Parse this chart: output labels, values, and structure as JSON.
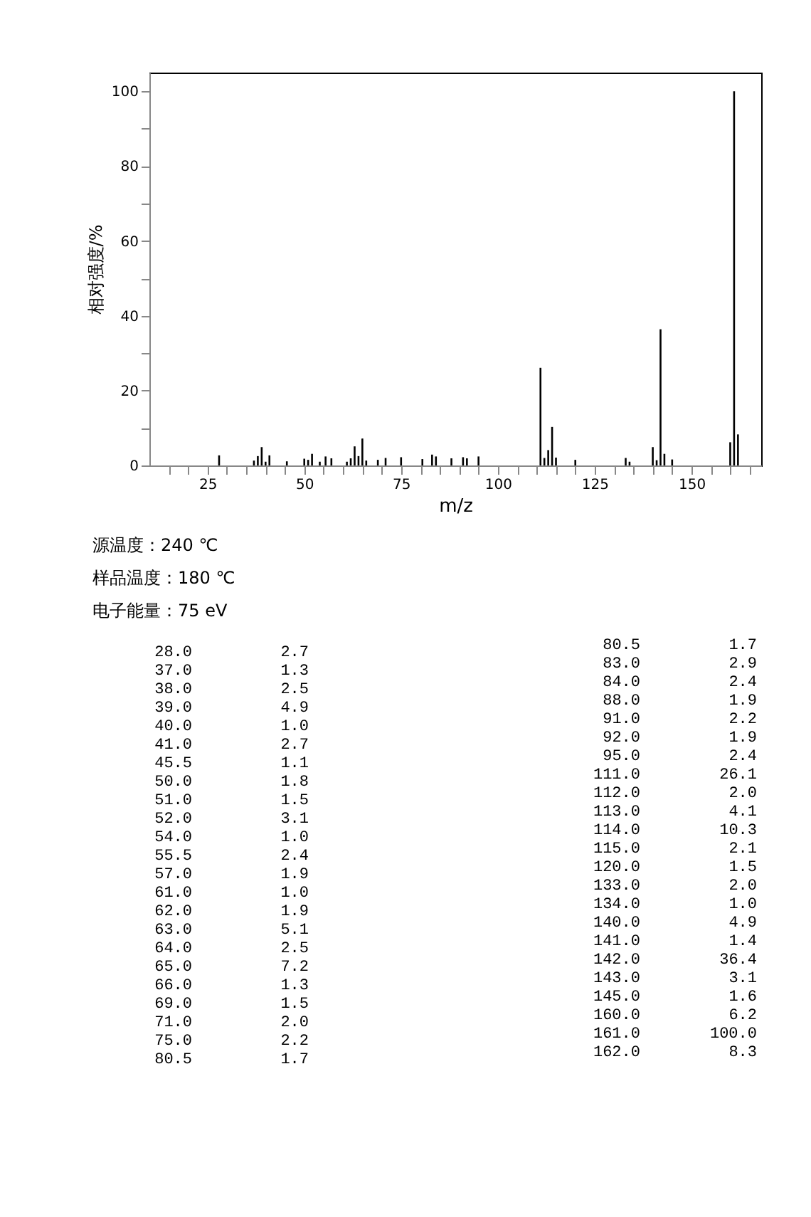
{
  "chart_data": [
    {
      "type": "bar",
      "xlabel": "m/z",
      "ylabel": "相对强度/%",
      "color": "#000000",
      "grid": false,
      "xlim": [
        10,
        168
      ],
      "ylim": [
        0,
        105
      ],
      "xticks": [
        {
          "value": 15,
          "label": null
        },
        {
          "value": 20,
          "label": null
        },
        25,
        {
          "value": 30,
          "label": null
        },
        {
          "value": 35,
          "label": null
        },
        {
          "value": 40,
          "label": null
        },
        {
          "value": 45,
          "label": null
        },
        50,
        {
          "value": 55,
          "label": null
        },
        {
          "value": 60,
          "label": null
        },
        {
          "value": 65,
          "label": null
        },
        {
          "value": 70,
          "label": null
        },
        75,
        {
          "value": 80,
          "label": null
        },
        {
          "value": 85,
          "label": null
        },
        {
          "value": 90,
          "label": null
        },
        {
          "value": 95,
          "label": null
        },
        100,
        {
          "value": 105,
          "label": null
        },
        {
          "value": 110,
          "label": null
        },
        {
          "value": 115,
          "label": null
        },
        {
          "value": 120,
          "label": null
        },
        125,
        {
          "value": 130,
          "label": null
        },
        {
          "value": 135,
          "label": null
        },
        {
          "value": 140,
          "label": null
        },
        {
          "value": 145,
          "label": null
        },
        150,
        {
          "value": 155,
          "label": null
        },
        {
          "value": 160,
          "label": null
        },
        {
          "value": 165,
          "label": null
        }
      ],
      "yticks": [
        0,
        {
          "value": 10,
          "label": null
        },
        20,
        {
          "value": 30,
          "label": null
        },
        40,
        {
          "value": 50,
          "label": null
        },
        60,
        {
          "value": 70,
          "label": null
        },
        80,
        {
          "value": 90,
          "label": null
        },
        100
      ],
      "x": [
        28.0,
        37.0,
        38.0,
        39.0,
        40.0,
        41.0,
        45.5,
        50.0,
        51.0,
        52.0,
        54.0,
        55.5,
        57.0,
        61.0,
        62.0,
        63.0,
        64.0,
        65.0,
        66.0,
        69.0,
        71.0,
        75.0,
        80.5,
        83.0,
        84.0,
        88.0,
        91.0,
        92.0,
        95.0,
        111.0,
        112.0,
        113.0,
        114.0,
        115.0,
        120.0,
        133.0,
        134.0,
        140.0,
        141.0,
        142.0,
        143.0,
        145.0,
        160.0,
        161.0,
        162.0
      ],
      "values": [
        2.7,
        1.3,
        2.5,
        4.9,
        1.0,
        2.7,
        1.1,
        1.8,
        1.5,
        3.1,
        1.0,
        2.4,
        1.9,
        1.0,
        1.9,
        5.1,
        2.5,
        7.2,
        1.3,
        1.5,
        2.0,
        2.2,
        1.7,
        2.9,
        2.4,
        1.9,
        2.2,
        1.9,
        2.4,
        26.1,
        2.0,
        4.1,
        10.3,
        2.1,
        1.5,
        2.0,
        1.0,
        4.9,
        1.4,
        36.4,
        3.1,
        1.6,
        6.2,
        100.0,
        8.3
      ],
      "annotations": [
        "源温度：240 ℃",
        "样品温度：180 ℃",
        "电子能量：75 eV"
      ]
    },
    {
      "type": "other",
      "annotations": [
        "28.0",
        "2.7",
        "37.0",
        "1.3",
        "38.0",
        "2.5",
        "39.0",
        "4.9",
        "40.0",
        "1.0",
        "41.0",
        "2.7",
        "45.5",
        "1.1",
        "50.0",
        "1.8",
        "51.0",
        "1.5",
        "52.0",
        "3.1",
        "54.0",
        "1.0",
        "55.5",
        "2.4",
        "57.0",
        "1.9",
        "61.0",
        "1.0",
        "62.0",
        "1.9",
        "63.0",
        "5.1",
        "64.0",
        "2.5",
        "65.0",
        "7.2",
        "66.0",
        "1.3",
        "69.0",
        "1.5",
        "71.0",
        "2.0",
        "75.0",
        "2.2",
        "80.5",
        "1.7",
        "80.5",
        "1.7",
        "83.0",
        "2.9",
        "84.0",
        "2.4",
        "88.0",
        "1.9",
        "91.0",
        "2.2",
        "92.0",
        "1.9",
        "95.0",
        "2.4",
        "111.0",
        "26.1",
        "112.0",
        "2.0",
        "113.0",
        "4.1",
        "114.0",
        "10.3",
        "115.0",
        "2.1",
        "120.0",
        "1.5",
        "133.0",
        "2.0",
        "134.0",
        "1.0",
        "140.0",
        "4.9",
        "141.0",
        "1.4",
        "142.0",
        "36.4",
        "143.0",
        "3.1",
        "145.0",
        "1.6",
        "160.0",
        "6.2",
        "161.0",
        "100.0",
        "162.0",
        "8.3"
      ]
    }
  ]
}
